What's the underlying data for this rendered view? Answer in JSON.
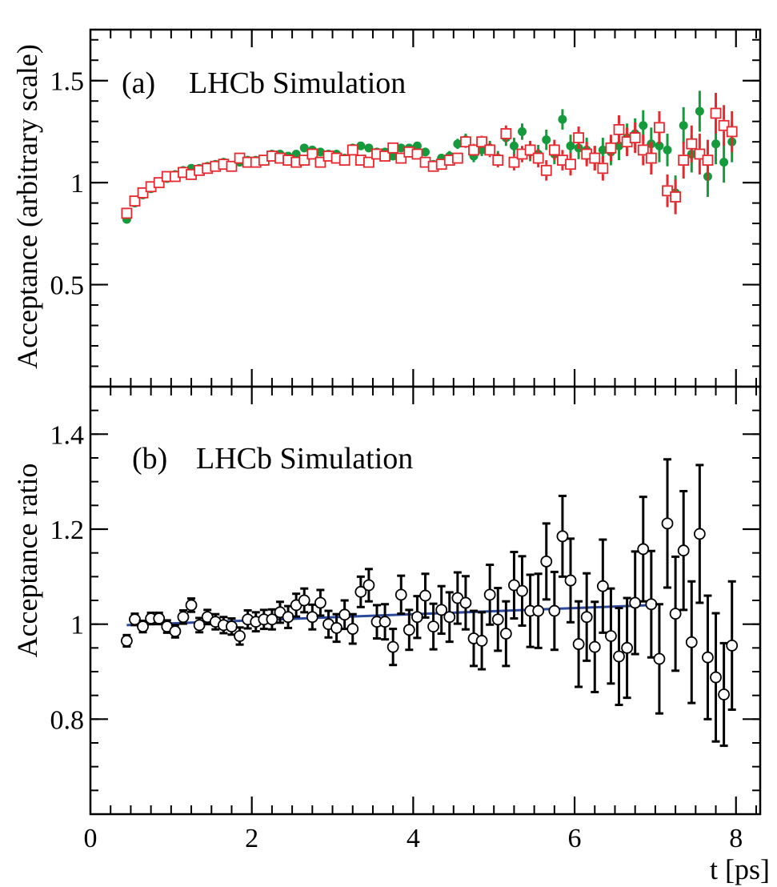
{
  "chart_data": [
    {
      "type": "scatter",
      "panel_label": "(a)",
      "title": "LHCb Simulation",
      "ylabel": "Acceptance (arbitrary scale)",
      "xlabel": "",
      "xlim": [
        0,
        8.3
      ],
      "ylim": [
        0,
        1.75
      ],
      "yticks": [
        {
          "value": 0.5,
          "label": "0.5"
        },
        {
          "value": 1,
          "label": "1"
        },
        {
          "value": 1.5,
          "label": "1.5"
        }
      ],
      "series": [
        {
          "marker": "filled-circle",
          "color": "#159a3c",
          "x": [
            0.45,
            0.55,
            0.65,
            0.75,
            0.85,
            0.95,
            1.05,
            1.15,
            1.25,
            1.35,
            1.45,
            1.55,
            1.65,
            1.75,
            1.85,
            1.95,
            2.05,
            2.15,
            2.25,
            2.35,
            2.45,
            2.55,
            2.65,
            2.75,
            2.85,
            2.95,
            3.05,
            3.15,
            3.25,
            3.35,
            3.45,
            3.55,
            3.65,
            3.75,
            3.85,
            3.95,
            4.05,
            4.15,
            4.25,
            4.35,
            4.45,
            4.55,
            4.65,
            4.75,
            4.85,
            4.95,
            5.05,
            5.15,
            5.25,
            5.35,
            5.45,
            5.55,
            5.65,
            5.75,
            5.85,
            5.95,
            6.05,
            6.15,
            6.25,
            6.35,
            6.45,
            6.55,
            6.65,
            6.75,
            6.85,
            6.95,
            7.05,
            7.15,
            7.25,
            7.35,
            7.45,
            7.55,
            7.65,
            7.75,
            7.85,
            7.95
          ],
          "y": [
            0.82,
            0.9,
            0.94,
            0.97,
            1.0,
            1.02,
            1.04,
            1.06,
            1.07,
            1.07,
            1.08,
            1.09,
            1.1,
            1.08,
            1.1,
            1.11,
            1.11,
            1.11,
            1.14,
            1.14,
            1.13,
            1.14,
            1.17,
            1.16,
            1.15,
            1.14,
            1.14,
            1.12,
            1.17,
            1.18,
            1.17,
            1.15,
            1.15,
            1.13,
            1.17,
            1.17,
            1.18,
            1.15,
            1.09,
            1.12,
            1.13,
            1.19,
            1.21,
            1.13,
            1.16,
            1.17,
            1.12,
            1.22,
            1.18,
            1.25,
            1.15,
            1.14,
            1.21,
            1.14,
            1.31,
            1.18,
            1.17,
            1.16,
            1.12,
            1.16,
            1.15,
            1.18,
            1.22,
            1.24,
            1.28,
            1.19,
            1.18,
            1.16,
            0.95,
            1.28,
            1.14,
            1.35,
            1.03,
            1.19,
            1.1,
            1.2
          ],
          "err": [
            0.01,
            0.01,
            0.01,
            0.01,
            0.01,
            0.01,
            0.01,
            0.01,
            0.01,
            0.01,
            0.01,
            0.01,
            0.01,
            0.01,
            0.01,
            0.01,
            0.01,
            0.01,
            0.01,
            0.01,
            0.01,
            0.01,
            0.01,
            0.01,
            0.01,
            0.01,
            0.01,
            0.01,
            0.01,
            0.01,
            0.01,
            0.01,
            0.01,
            0.015,
            0.015,
            0.015,
            0.015,
            0.02,
            0.02,
            0.02,
            0.025,
            0.025,
            0.03,
            0.03,
            0.03,
            0.035,
            0.035,
            0.04,
            0.04,
            0.04,
            0.045,
            0.045,
            0.05,
            0.05,
            0.05,
            0.055,
            0.055,
            0.06,
            0.06,
            0.06,
            0.065,
            0.07,
            0.07,
            0.075,
            0.075,
            0.08,
            0.08,
            0.08,
            0.085,
            0.09,
            0.09,
            0.1,
            0.1,
            0.1,
            0.1,
            0.1
          ]
        },
        {
          "marker": "open-square",
          "color": "#e8272e",
          "x": [
            0.45,
            0.55,
            0.65,
            0.75,
            0.85,
            0.95,
            1.05,
            1.15,
            1.25,
            1.35,
            1.45,
            1.55,
            1.65,
            1.75,
            1.85,
            1.95,
            2.05,
            2.15,
            2.25,
            2.35,
            2.45,
            2.55,
            2.65,
            2.75,
            2.85,
            2.95,
            3.05,
            3.15,
            3.25,
            3.35,
            3.45,
            3.55,
            3.65,
            3.75,
            3.85,
            3.95,
            4.05,
            4.15,
            4.25,
            4.35,
            4.45,
            4.55,
            4.65,
            4.75,
            4.85,
            4.95,
            5.05,
            5.15,
            5.25,
            5.35,
            5.45,
            5.55,
            5.65,
            5.75,
            5.85,
            5.95,
            6.05,
            6.15,
            6.25,
            6.35,
            6.45,
            6.55,
            6.65,
            6.75,
            6.85,
            6.95,
            7.05,
            7.15,
            7.25,
            7.35,
            7.45,
            7.55,
            7.65,
            7.75,
            7.85,
            7.95
          ],
          "y": [
            0.85,
            0.91,
            0.95,
            0.98,
            1.0,
            1.03,
            1.03,
            1.05,
            1.04,
            1.06,
            1.07,
            1.08,
            1.09,
            1.08,
            1.12,
            1.1,
            1.1,
            1.11,
            1.13,
            1.12,
            1.11,
            1.1,
            1.11,
            1.14,
            1.1,
            1.13,
            1.12,
            1.11,
            1.16,
            1.11,
            1.1,
            1.14,
            1.13,
            1.17,
            1.12,
            1.15,
            1.14,
            1.1,
            1.08,
            1.09,
            1.11,
            1.12,
            1.2,
            1.16,
            1.2,
            1.16,
            1.11,
            1.24,
            1.1,
            1.14,
            1.16,
            1.12,
            1.06,
            1.16,
            1.11,
            1.09,
            1.22,
            1.14,
            1.12,
            1.07,
            1.17,
            1.26,
            1.2,
            1.22,
            1.16,
            1.12,
            1.27,
            0.96,
            0.93,
            1.11,
            1.19,
            1.14,
            1.11,
            1.34,
            1.28,
            1.25
          ],
          "err": [
            0.01,
            0.01,
            0.01,
            0.01,
            0.01,
            0.01,
            0.01,
            0.01,
            0.01,
            0.01,
            0.01,
            0.01,
            0.01,
            0.01,
            0.01,
            0.01,
            0.01,
            0.01,
            0.01,
            0.01,
            0.01,
            0.01,
            0.01,
            0.01,
            0.01,
            0.01,
            0.01,
            0.01,
            0.01,
            0.01,
            0.01,
            0.01,
            0.01,
            0.015,
            0.015,
            0.015,
            0.015,
            0.02,
            0.02,
            0.02,
            0.025,
            0.025,
            0.03,
            0.03,
            0.03,
            0.035,
            0.035,
            0.04,
            0.04,
            0.04,
            0.045,
            0.045,
            0.05,
            0.05,
            0.05,
            0.055,
            0.055,
            0.06,
            0.06,
            0.06,
            0.065,
            0.07,
            0.07,
            0.075,
            0.075,
            0.08,
            0.08,
            0.08,
            0.085,
            0.09,
            0.09,
            0.1,
            0.1,
            0.1,
            0.1,
            0.1
          ]
        }
      ]
    },
    {
      "type": "scatter",
      "panel_label": "(b)",
      "title": "LHCb Simulation",
      "ylabel": "Acceptance ratio",
      "xlabel": "t [ps]",
      "xlim": [
        0,
        8.3
      ],
      "ylim": [
        0.6,
        1.5
      ],
      "xticks": [
        {
          "value": 0,
          "label": "0"
        },
        {
          "value": 2,
          "label": "2"
        },
        {
          "value": 4,
          "label": "4"
        },
        {
          "value": 6,
          "label": "6"
        },
        {
          "value": 8,
          "label": "8"
        }
      ],
      "yticks": [
        {
          "value": 0.8,
          "label": "0.8"
        },
        {
          "value": 1,
          "label": "1"
        },
        {
          "value": 1.2,
          "label": "1.2"
        },
        {
          "value": 1.4,
          "label": "1.4"
        }
      ],
      "series": [
        {
          "marker": "open-circle",
          "color": "#000000",
          "x": [
            0.45,
            0.55,
            0.65,
            0.75,
            0.85,
            0.95,
            1.05,
            1.15,
            1.25,
            1.35,
            1.45,
            1.55,
            1.65,
            1.75,
            1.85,
            1.95,
            2.05,
            2.15,
            2.25,
            2.35,
            2.45,
            2.55,
            2.65,
            2.75,
            2.85,
            2.95,
            3.05,
            3.15,
            3.25,
            3.35,
            3.45,
            3.55,
            3.65,
            3.75,
            3.85,
            3.95,
            4.05,
            4.15,
            4.25,
            4.35,
            4.45,
            4.55,
            4.65,
            4.75,
            4.85,
            4.95,
            5.05,
            5.15,
            5.25,
            5.35,
            5.45,
            5.55,
            5.65,
            5.75,
            5.85,
            5.95,
            6.05,
            6.15,
            6.25,
            6.35,
            6.45,
            6.55,
            6.65,
            6.75,
            6.85,
            6.95,
            7.05,
            7.15,
            7.25,
            7.35,
            7.45,
            7.55,
            7.65,
            7.75,
            7.85,
            7.95
          ],
          "y": [
            0.965,
            1.01,
            0.995,
            1.012,
            1.012,
            0.995,
            0.985,
            1.015,
            1.04,
            0.998,
            1.015,
            1.005,
            0.998,
            0.995,
            0.975,
            1.01,
            1.005,
            1.01,
            1.01,
            1.025,
            1.015,
            1.04,
            1.05,
            1.015,
            1.045,
            1.0,
            0.992,
            1.02,
            0.99,
            1.068,
            1.082,
            1.005,
            1.005,
            0.952,
            1.062,
            0.988,
            1.015,
            1.06,
            0.995,
            1.03,
            1.015,
            1.055,
            1.045,
            0.97,
            0.965,
            1.062,
            1.01,
            0.98,
            1.082,
            1.07,
            1.028,
            1.028,
            1.132,
            1.028,
            1.185,
            1.092,
            0.958,
            1.015,
            0.952,
            1.08,
            0.975,
            0.932,
            0.95,
            1.045,
            1.158,
            1.042,
            0.927,
            1.212,
            1.022,
            1.155,
            0.962,
            1.19,
            0.93,
            0.888,
            0.852,
            0.955
          ],
          "err": [
            0.012,
            0.012,
            0.012,
            0.012,
            0.012,
            0.013,
            0.013,
            0.014,
            0.014,
            0.015,
            0.015,
            0.016,
            0.017,
            0.017,
            0.018,
            0.019,
            0.02,
            0.02,
            0.021,
            0.022,
            0.023,
            0.024,
            0.025,
            0.026,
            0.027,
            0.028,
            0.029,
            0.03,
            0.031,
            0.032,
            0.034,
            0.035,
            0.037,
            0.038,
            0.04,
            0.042,
            0.044,
            0.046,
            0.048,
            0.05,
            0.052,
            0.054,
            0.056,
            0.058,
            0.06,
            0.063,
            0.066,
            0.068,
            0.07,
            0.073,
            0.076,
            0.078,
            0.08,
            0.082,
            0.085,
            0.088,
            0.09,
            0.092,
            0.095,
            0.098,
            0.1,
            0.102,
            0.105,
            0.108,
            0.11,
            0.112,
            0.115,
            0.135,
            0.12,
            0.125,
            0.128,
            0.145,
            0.13,
            0.135,
            0.108,
            0.135
          ]
        }
      ],
      "fit_line": {
        "color": "#2b4a9e",
        "x": [
          0.45,
          6.95
        ],
        "y": [
          0.998,
          1.04
        ]
      }
    }
  ]
}
